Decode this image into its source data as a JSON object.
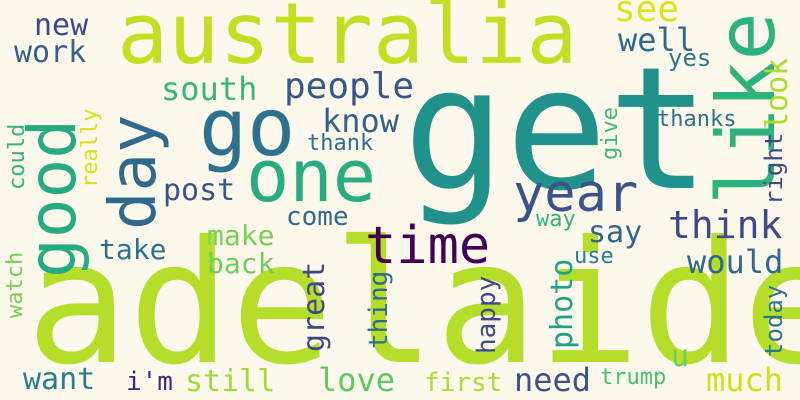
{
  "word_cloud": {
    "background": "#fdf8ec",
    "words": [
      {
        "text": "adelaide",
        "color": "#b5de2b",
        "orientation": "horizontal"
      },
      {
        "text": "get",
        "color": "#21918c",
        "orientation": "horizontal"
      },
      {
        "text": "australia",
        "color": "#c2df23",
        "orientation": "horizontal"
      },
      {
        "text": "like",
        "color": "#2db27d",
        "orientation": "vertical"
      },
      {
        "text": "good",
        "color": "#25ab82",
        "orientation": "vertical"
      },
      {
        "text": "go",
        "color": "#2c728e",
        "orientation": "horizontal"
      },
      {
        "text": "one",
        "color": "#27ad81",
        "orientation": "horizontal"
      },
      {
        "text": "day",
        "color": "#31688e",
        "orientation": "vertical"
      },
      {
        "text": "time",
        "color": "#440154",
        "orientation": "horizontal"
      },
      {
        "text": "year",
        "color": "#3b528b",
        "orientation": "horizontal"
      },
      {
        "text": "think",
        "color": "#3e4989",
        "orientation": "horizontal"
      },
      {
        "text": "see",
        "color": "#dde318",
        "orientation": "horizontal"
      },
      {
        "text": "people",
        "color": "#39568c",
        "orientation": "horizontal"
      },
      {
        "text": "new",
        "color": "#3e4989",
        "orientation": "horizontal"
      },
      {
        "text": "work",
        "color": "#34618d",
        "orientation": "horizontal"
      },
      {
        "text": "well",
        "color": "#31688e",
        "orientation": "horizontal"
      },
      {
        "text": "look",
        "color": "#addc30",
        "orientation": "vertical"
      },
      {
        "text": "yes",
        "color": "#2a788e",
        "orientation": "horizontal"
      },
      {
        "text": "south",
        "color": "#37b878",
        "orientation": "horizontal"
      },
      {
        "text": "know",
        "color": "#35608d",
        "orientation": "horizontal"
      },
      {
        "text": "thanks",
        "color": "#2d708e",
        "orientation": "horizontal"
      },
      {
        "text": "right",
        "color": "#3e4989",
        "orientation": "vertical"
      },
      {
        "text": "thank",
        "color": "#2e6f8e",
        "orientation": "horizontal"
      },
      {
        "text": "give",
        "color": "#3bbb75",
        "orientation": "vertical"
      },
      {
        "text": "really",
        "color": "#d8e219",
        "orientation": "vertical"
      },
      {
        "text": "could",
        "color": "#35b779",
        "orientation": "vertical"
      },
      {
        "text": "post",
        "color": "#3a538b",
        "orientation": "horizontal"
      },
      {
        "text": "come",
        "color": "#306a8e",
        "orientation": "horizontal"
      },
      {
        "text": "way",
        "color": "#2fb47c",
        "orientation": "horizontal"
      },
      {
        "text": "say",
        "color": "#33638d",
        "orientation": "horizontal"
      },
      {
        "text": "take",
        "color": "#2c718e",
        "orientation": "horizontal"
      },
      {
        "text": "make",
        "color": "#7ad151",
        "orientation": "horizontal"
      },
      {
        "text": "back",
        "color": "#6ece58",
        "orientation": "horizontal"
      },
      {
        "text": "use",
        "color": "#277f8e",
        "orientation": "horizontal"
      },
      {
        "text": "would",
        "color": "#31688e",
        "orientation": "horizontal"
      },
      {
        "text": "watch",
        "color": "#75d054",
        "orientation": "vertical"
      },
      {
        "text": "great",
        "color": "#3f4788",
        "orientation": "vertical"
      },
      {
        "text": "thing",
        "color": "#2f6c8e",
        "orientation": "vertical"
      },
      {
        "text": "happy",
        "color": "#3e4989",
        "orientation": "vertical"
      },
      {
        "text": "photo",
        "color": "#1fa187",
        "orientation": "vertical"
      },
      {
        "text": "today",
        "color": "#2a788e",
        "orientation": "vertical"
      },
      {
        "text": "u",
        "color": "#6ccd5a",
        "orientation": "horizontal"
      },
      {
        "text": "want",
        "color": "#287d8e",
        "orientation": "horizontal"
      },
      {
        "text": "i'm",
        "color": "#482677",
        "orientation": "horizontal"
      },
      {
        "text": "still",
        "color": "#9fda3a",
        "orientation": "horizontal"
      },
      {
        "text": "love",
        "color": "#5ec962",
        "orientation": "horizontal"
      },
      {
        "text": "first",
        "color": "#aadc32",
        "orientation": "horizontal"
      },
      {
        "text": "need",
        "color": "#3b528b",
        "orientation": "horizontal"
      },
      {
        "text": "trump",
        "color": "#4ac16d",
        "orientation": "horizontal"
      },
      {
        "text": "much",
        "color": "#d0e11c",
        "orientation": "horizontal"
      }
    ]
  }
}
